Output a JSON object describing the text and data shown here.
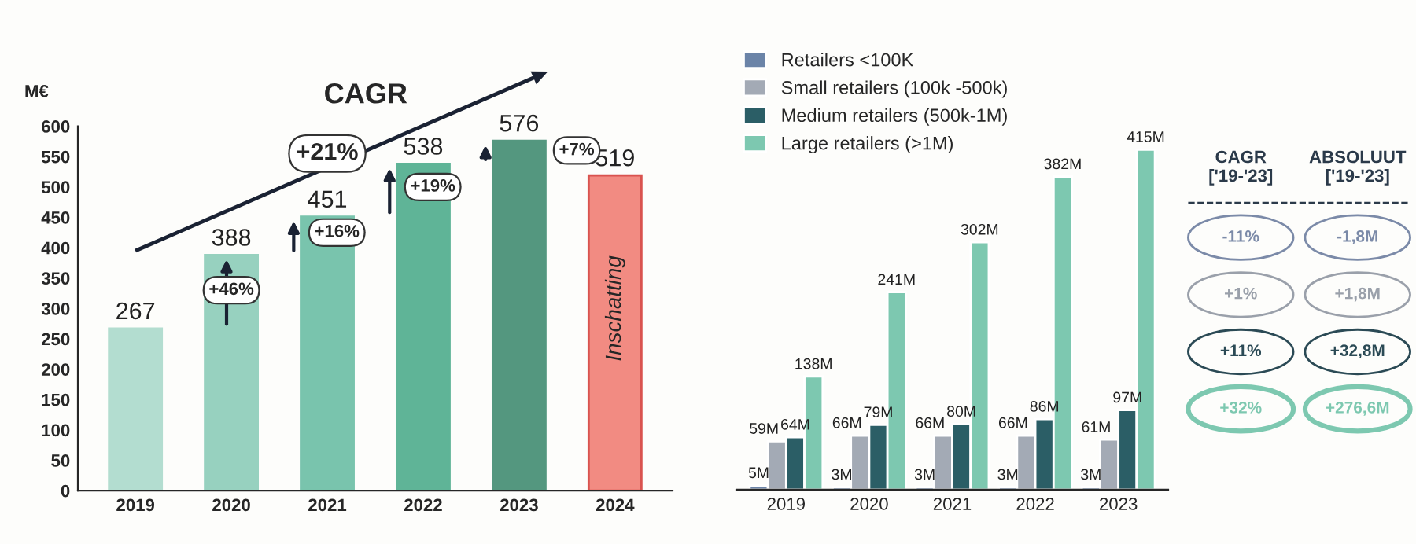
{
  "chart_data": [
    {
      "type": "bar",
      "ylabel": "M€",
      "categories": [
        "2019",
        "2020",
        "2021",
        "2022",
        "2023",
        "2024"
      ],
      "values": [
        267,
        388,
        451,
        538,
        576,
        519
      ],
      "colors": [
        "#b3ddd0",
        "#97d1bf",
        "#79c4ad",
        "#5fb497",
        "#54977f",
        "#f28b82"
      ],
      "ylim": [
        0,
        600
      ],
      "yticks": [
        0,
        50,
        100,
        150,
        200,
        250,
        300,
        350,
        400,
        450,
        500,
        550,
        600
      ],
      "data_labels": true,
      "grid": false,
      "annotations": [
        "CAGR",
        "+21%",
        "+46%",
        "+16%",
        "+19%",
        "+7%",
        "Inschatting"
      ]
    },
    {
      "type": "bar",
      "categories": [
        "2019",
        "2020",
        "2021",
        "2022",
        "2023"
      ],
      "tick_labels": "x",
      "legend": "top left",
      "grid": false,
      "series": [
        {
          "name": "Retailers <100K",
          "color": "#6b84a8",
          "values": [
            5,
            3,
            3,
            3,
            3
          ],
          "value_labels": [
            "5M",
            "3M",
            "3M",
            "3M",
            "3M"
          ]
        },
        {
          "name": "Small retailers (100k -500k)",
          "color": "#a3aab5",
          "values": [
            59,
            66,
            66,
            66,
            61
          ],
          "value_labels": [
            "59M",
            "66M",
            "66M",
            "66M",
            "61M"
          ]
        },
        {
          "name": "Medium retailers (500k-1M)",
          "color": "#2b5e66",
          "values": [
            64,
            79,
            80,
            86,
            97
          ],
          "value_labels": [
            "64M",
            "79M",
            "80M",
            "86M",
            "97M"
          ]
        },
        {
          "name": "Large retailers (>1M)",
          "color": "#7dc8b0",
          "values": [
            138,
            241,
            302,
            382,
            415
          ],
          "value_labels": [
            "138M",
            "241M",
            "302M",
            "382M",
            "415M"
          ]
        }
      ]
    },
    {
      "type": "other",
      "annotations": [
        "CAGR\n['19-'23]",
        "ABSOLUUT\n['19-'23]",
        "-11%",
        "-1,8M",
        "+1%",
        "+1,8M",
        "+11%",
        "+32,8M",
        "+32%",
        "+276,6M"
      ]
    }
  ]
}
